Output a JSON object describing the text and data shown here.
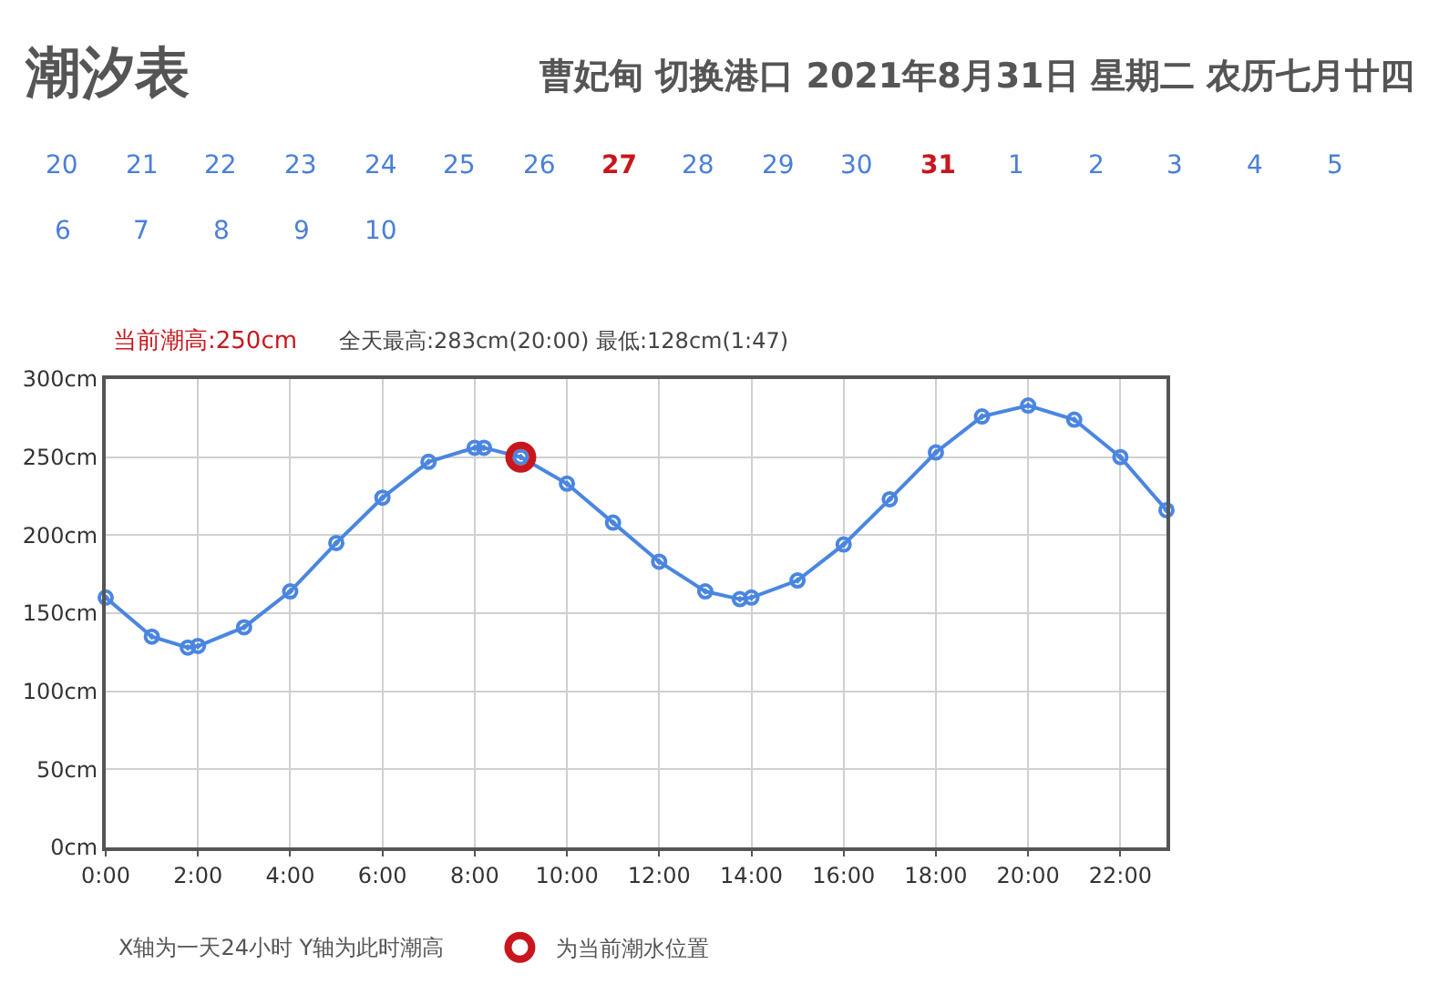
{
  "chart_data": {
    "type": "line",
    "title": "潮汐表",
    "subtitle": "曹妃甸 切换港口 2021年8月31日 星期二 农历七月廿四",
    "annotations": [
      "20",
      "21",
      "22",
      "23",
      "24",
      "25",
      "26",
      "27",
      "28",
      "29",
      "30",
      "31",
      "1",
      "2",
      "3",
      "4",
      "5",
      "6",
      "7",
      "8",
      "9",
      "10",
      "当前潮高:250cm",
      "全天最高:283cm(20:00) 最低:128cm(1:47)",
      "X轴为一天24小时 Y轴为此时潮高"
    ],
    "series": [
      {
        "color": "#4a86e0",
        "x": [
          0,
          1,
          1.78,
          2,
          3,
          4,
          5,
          6,
          7,
          8,
          8.2,
          9,
          10,
          11,
          12,
          13,
          13.75,
          14,
          15,
          16,
          17,
          18,
          19,
          20,
          21,
          22,
          23
        ],
        "values": [
          160,
          135,
          128,
          129,
          141,
          164,
          195,
          224,
          247,
          256,
          256,
          250,
          233,
          208,
          183,
          164,
          159,
          160,
          171,
          194,
          223,
          253,
          276,
          283,
          274,
          250,
          216
        ]
      },
      {
        "type": "scatter",
        "name": "为当前潮水位置",
        "color": "#c8161d",
        "x": [
          9
        ],
        "values": [
          250
        ]
      }
    ],
    "xlim": [
      0,
      23
    ],
    "xticks": [
      {
        "value": 0,
        "label": "0:00"
      },
      {
        "value": 2,
        "label": "2:00"
      },
      {
        "value": 4,
        "label": "4:00"
      },
      {
        "value": 6,
        "label": "6:00"
      },
      {
        "value": 8,
        "label": "8:00"
      },
      {
        "value": 10,
        "label": "10:00"
      },
      {
        "value": 12,
        "label": "12:00"
      },
      {
        "value": 14,
        "label": "14:00"
      },
      {
        "value": 16,
        "label": "16:00"
      },
      {
        "value": 18,
        "label": "18:00"
      },
      {
        "value": 20,
        "label": "20:00"
      },
      {
        "value": 22,
        "label": "22:00"
      }
    ],
    "ylim": [
      0,
      300
    ],
    "yticks": [
      {
        "value": 0,
        "label": "0cm"
      },
      {
        "value": 50,
        "label": "50cm"
      },
      {
        "value": 100,
        "label": "100cm"
      },
      {
        "value": 150,
        "label": "150cm"
      },
      {
        "value": 200,
        "label": "200cm"
      },
      {
        "value": 250,
        "label": "250cm"
      },
      {
        "value": 300,
        "label": "300cm"
      }
    ],
    "grid": true,
    "legend": "bottom",
    "marker": "circle",
    "line_style": "solid"
  }
}
